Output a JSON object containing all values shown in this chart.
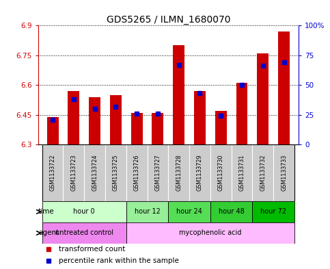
{
  "title": "GDS5265 / ILMN_1680070",
  "samples": [
    "GSM1133722",
    "GSM1133723",
    "GSM1133724",
    "GSM1133725",
    "GSM1133726",
    "GSM1133727",
    "GSM1133728",
    "GSM1133729",
    "GSM1133730",
    "GSM1133731",
    "GSM1133732",
    "GSM1133733"
  ],
  "transformed_count": [
    6.44,
    6.57,
    6.54,
    6.55,
    6.46,
    6.46,
    6.8,
    6.57,
    6.47,
    6.61,
    6.76,
    6.87
  ],
  "percentile_rank": [
    21,
    38,
    30,
    32,
    26,
    26,
    67,
    43,
    24,
    50,
    66,
    69
  ],
  "ylim_left": [
    6.3,
    6.9
  ],
  "yticks_left": [
    6.3,
    6.45,
    6.6,
    6.75,
    6.9
  ],
  "ylim_right": [
    0,
    100
  ],
  "yticks_right": [
    0,
    25,
    50,
    75,
    100
  ],
  "bar_color": "#cc0000",
  "dot_color": "#0000cc",
  "bar_baseline": 6.3,
  "time_groups": [
    {
      "label": "hour 0",
      "start": 0,
      "end": 3,
      "color": "#ccffcc"
    },
    {
      "label": "hour 12",
      "start": 4,
      "end": 5,
      "color": "#99ee99"
    },
    {
      "label": "hour 24",
      "start": 6,
      "end": 7,
      "color": "#55dd55"
    },
    {
      "label": "hour 48",
      "start": 8,
      "end": 9,
      "color": "#33cc33"
    },
    {
      "label": "hour 72",
      "start": 10,
      "end": 11,
      "color": "#00bb00"
    }
  ],
  "agent_groups": [
    {
      "label": "untreated control",
      "start": 0,
      "end": 3,
      "color": "#ee88ee"
    },
    {
      "label": "mycophenolic acid",
      "start": 4,
      "end": 11,
      "color": "#ffbbff"
    }
  ],
  "xlabel_time": "time",
  "xlabel_agent": "agent",
  "legend_red": "transformed count",
  "legend_blue": "percentile rank within the sample",
  "right_axis_color": "#0000cc",
  "left_axis_color": "#cc0000",
  "sample_area_color": "#cccccc",
  "title_fontsize": 10,
  "tick_fontsize": 7.5,
  "bar_width": 0.55
}
